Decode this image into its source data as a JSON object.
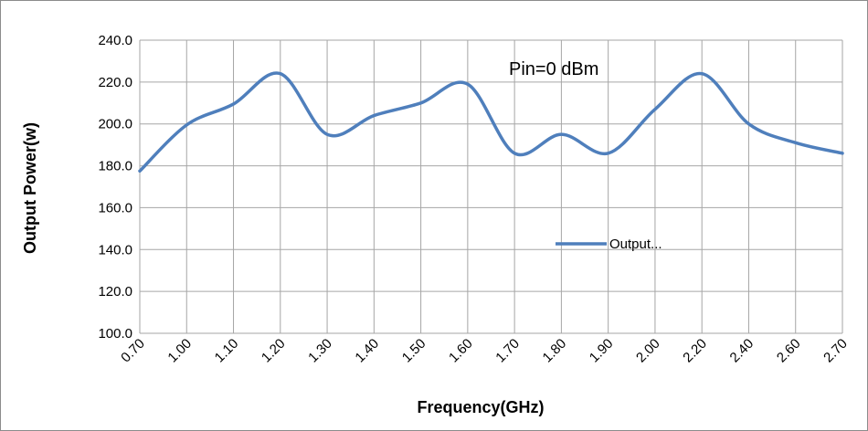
{
  "chart_data": {
    "type": "line",
    "title": "",
    "xlabel": "Frequency(GHz)",
    "ylabel": "Output Power(w)",
    "ylim": [
      100,
      240
    ],
    "ytick_step": 20,
    "yticks": [
      "100.0",
      "120.0",
      "140.0",
      "160.0",
      "180.0",
      "200.0",
      "220.0",
      "240.0"
    ],
    "categories": [
      "0.70",
      "1.00",
      "1.10",
      "1.20",
      "1.30",
      "1.40",
      "1.50",
      "1.60",
      "1.70",
      "1.80",
      "1.90",
      "2.00",
      "2.20",
      "2.40",
      "2.60",
      "2.70"
    ],
    "annotation": "Pin=0 dBm",
    "grid": true,
    "legend": {
      "placement": "center-right",
      "label": "Output..."
    },
    "series": [
      {
        "values": [
          177.5,
          199.5,
          209.5,
          224,
          195,
          204,
          210,
          219,
          186,
          195,
          186,
          207,
          224,
          200,
          191,
          186
        ],
        "color": "#4f7fbc"
      }
    ]
  }
}
